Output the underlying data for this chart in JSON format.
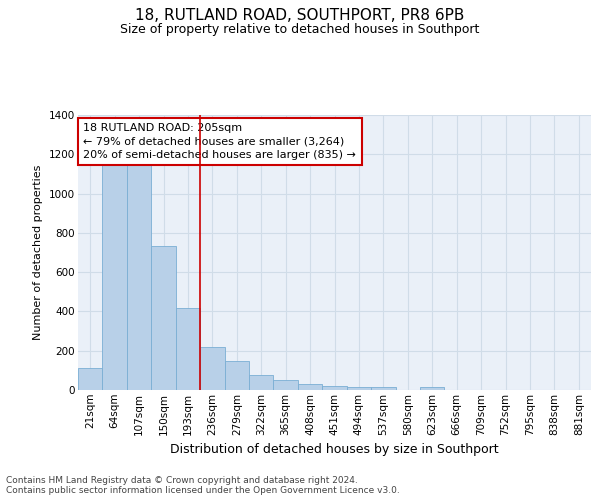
{
  "title": "18, RUTLAND ROAD, SOUTHPORT, PR8 6PB",
  "subtitle": "Size of property relative to detached houses in Southport",
  "xlabel": "Distribution of detached houses by size in Southport",
  "ylabel": "Number of detached properties",
  "categories": [
    "21sqm",
    "64sqm",
    "107sqm",
    "150sqm",
    "193sqm",
    "236sqm",
    "279sqm",
    "322sqm",
    "365sqm",
    "408sqm",
    "451sqm",
    "494sqm",
    "537sqm",
    "580sqm",
    "623sqm",
    "666sqm",
    "709sqm",
    "752sqm",
    "795sqm",
    "838sqm",
    "881sqm"
  ],
  "values": [
    110,
    1155,
    1150,
    735,
    420,
    220,
    150,
    75,
    50,
    32,
    20,
    15,
    15,
    0,
    13,
    0,
    0,
    0,
    0,
    0,
    0
  ],
  "bar_color": "#b8d0e8",
  "bar_edge_color": "#7aaed4",
  "grid_color": "#d0dce8",
  "background_color": "#eaf0f8",
  "red_line_color": "#cc0000",
  "red_line_x": 4.5,
  "annotation_text": "18 RUTLAND ROAD: 205sqm\n← 79% of detached houses are smaller (3,264)\n20% of semi-detached houses are larger (835) →",
  "annotation_box_color": "#ffffff",
  "annotation_box_edge": "#cc0000",
  "footnote": "Contains HM Land Registry data © Crown copyright and database right 2024.\nContains public sector information licensed under the Open Government Licence v3.0.",
  "ylim": [
    0,
    1400
  ],
  "yticks": [
    0,
    200,
    400,
    600,
    800,
    1000,
    1200,
    1400
  ],
  "title_fontsize": 11,
  "subtitle_fontsize": 9,
  "ylabel_fontsize": 8,
  "xlabel_fontsize": 9,
  "tick_fontsize": 7.5,
  "annotation_fontsize": 8,
  "footnote_fontsize": 6.5
}
